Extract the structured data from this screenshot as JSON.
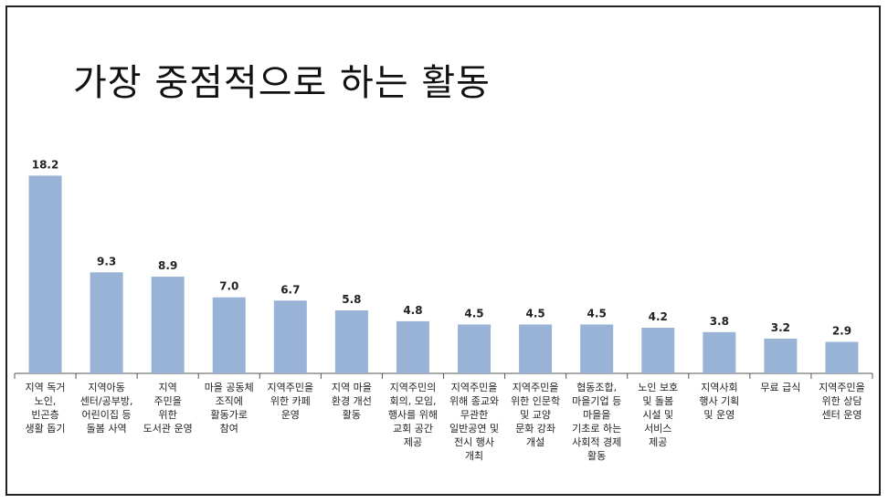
{
  "title": "가장 중점적으로 하는 활동",
  "chart_data": {
    "type": "bar",
    "title": "가장 중점적으로 하는 활동",
    "categories": [
      "지역 독거 노인, 빈곤층 생활 돕기",
      "지역아동 센터/공부방, 어린이집 등 돌봄 사역",
      "지역 주민을 위한 도서관 운영",
      "마을 공동체 조직에 활동가로 참여",
      "지역주민을 위한 카페 운영",
      "지역 마을 환경 개선 활동",
      "지역주민의 회의, 모임, 행사를 위해 교회 공간 제공",
      "지역주민을 위해 종교와 무관한 일반공연 및 전시 행사 개최",
      "지역주민을 위한 인문학 및 교양 문화 강좌 개설",
      "협동조합, 마을기업 등 마을을 기초로 하는 사회적 경제 활동",
      "노인 보호 및 돌봄 시설 및 서비스 제공",
      "지역사회 행사 기획 및 운영",
      "무료 급식",
      "지역주민을 위한 상담 센터 운영"
    ],
    "category_lines": [
      [
        "지역 독거",
        "노인,",
        "빈곤층",
        "생활 돕기"
      ],
      [
        "지역아동",
        "센터/공부방,",
        "어린이집 등",
        "돌봄 사역"
      ],
      [
        "지역",
        "주민을",
        "위한",
        "도서관 운영"
      ],
      [
        "마을 공동체",
        "조직에",
        "활동가로",
        "참여"
      ],
      [
        "지역주민을",
        "위한 카페",
        "운영"
      ],
      [
        "지역 마을",
        "환경 개선",
        "활동"
      ],
      [
        "지역주민의",
        "회의, 모임,",
        "행사를 위해",
        "교회 공간",
        "제공"
      ],
      [
        "지역주민을",
        "위해 종교와",
        "무관한",
        "일반공연 및",
        "전시 행사",
        "개최"
      ],
      [
        "지역주민을",
        "위한 인문학",
        "및 교양",
        "문화 강좌",
        "개설"
      ],
      [
        "협동조합,",
        "마을기업 등",
        "마을을",
        "기초로 하는",
        "사회적 경제",
        "활동"
      ],
      [
        "노인 보호",
        "및 돌봄",
        "시설 및",
        "서비스",
        "제공"
      ],
      [
        "지역사회",
        "행사 기획",
        "및 운영"
      ],
      [
        "무료 급식"
      ],
      [
        "지역주민을",
        "위한 상담",
        "센터 운영"
      ]
    ],
    "values": [
      18.2,
      9.3,
      8.9,
      7.0,
      6.7,
      5.8,
      4.8,
      4.5,
      4.5,
      4.5,
      4.2,
      3.8,
      3.2,
      2.9
    ],
    "value_labels": [
      "18.2",
      "9.3",
      "8.9",
      "7.0",
      "6.7",
      "5.8",
      "4.8",
      "4.5",
      "4.5",
      "4.5",
      "4.2",
      "3.8",
      "3.2",
      "2.9"
    ],
    "ylim": [
      0,
      20
    ],
    "grid": false,
    "bar_color": "#98b3d6"
  }
}
